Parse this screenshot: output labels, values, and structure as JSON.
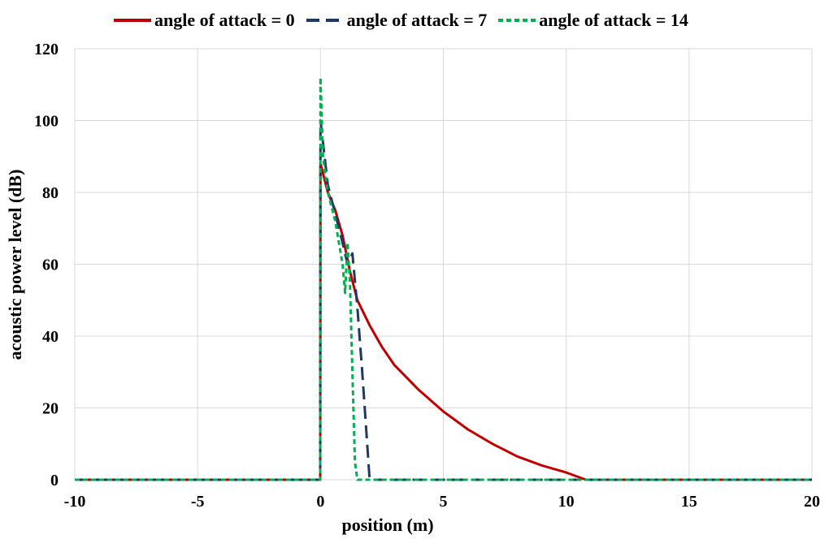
{
  "chart_data": {
    "type": "line",
    "title": "",
    "xlabel": "position (m)",
    "ylabel": "acoustic power level (dB)",
    "xlim": [
      -10,
      20
    ],
    "ylim": [
      0,
      120
    ],
    "xticks": [
      -10,
      -5,
      0,
      5,
      10,
      15,
      20
    ],
    "yticks": [
      0,
      20,
      40,
      60,
      80,
      100,
      120
    ],
    "grid": true,
    "legend_position": "top",
    "series": [
      {
        "name": "angle of attack = 0",
        "color": "#c00000",
        "style": "solid",
        "x": [
          -10,
          -0.01,
          0,
          0.3,
          0.6,
          0.9,
          1.2,
          1.5,
          2,
          2.5,
          3,
          4,
          5,
          6,
          7,
          8,
          9,
          10,
          10.8,
          20
        ],
        "y": [
          0,
          0,
          88,
          80,
          75,
          68,
          58,
          50,
          43,
          37,
          32,
          25,
          19,
          14,
          10,
          6.5,
          4,
          2,
          0,
          0
        ]
      },
      {
        "name": "angle of attack = 7",
        "color": "#1f3864",
        "style": "dash",
        "x": [
          -10,
          -0.01,
          0,
          0.3,
          0.6,
          0.9,
          1.1,
          1.3,
          1.5,
          1.7,
          1.9,
          2.0,
          20
        ],
        "y": [
          0,
          0,
          100,
          82,
          74,
          66,
          60,
          63,
          48,
          30,
          10,
          0,
          0
        ]
      },
      {
        "name": "angle of attack = 14",
        "color": "#00b050",
        "style": "short-dash",
        "x": [
          -10,
          -0.01,
          0,
          0.1,
          0.3,
          0.6,
          0.9,
          1.0,
          1.1,
          1.2,
          1.3,
          1.4,
          1.5,
          20
        ],
        "y": [
          0,
          0,
          112,
          90,
          80,
          72,
          60,
          52,
          66,
          55,
          30,
          5,
          0,
          0
        ]
      }
    ]
  }
}
